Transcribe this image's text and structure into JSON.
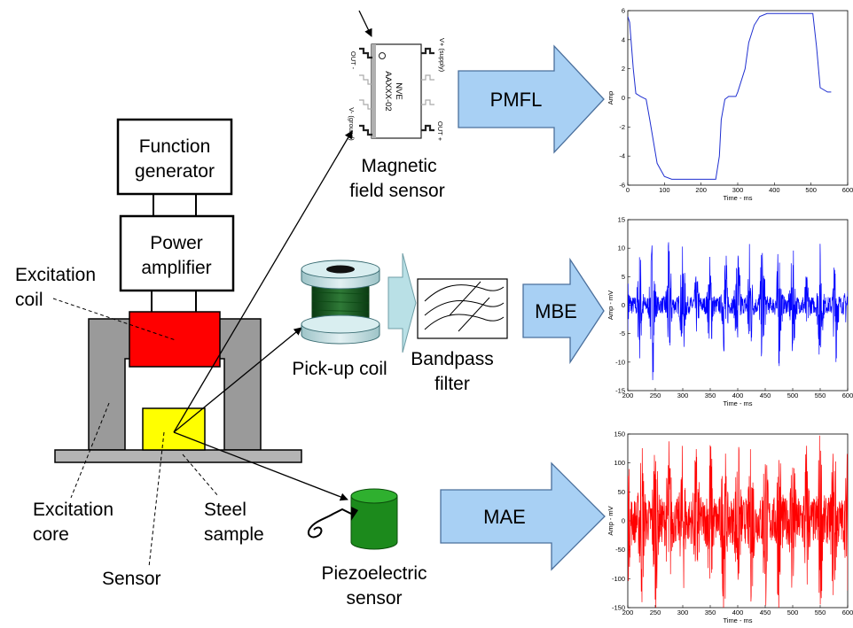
{
  "blocks": {
    "function_generator": [
      "Function",
      "generator"
    ],
    "power_amplifier": [
      "Power",
      "amplifier"
    ]
  },
  "labels": {
    "excitation_coil": [
      "Excitation",
      "coil"
    ],
    "excitation_core": [
      "Excitation",
      "core"
    ],
    "steel_sample": [
      "Steel",
      "sample"
    ],
    "sensor": "Sensor",
    "pickup_coil": "Pick-up coil",
    "bandpass_filter": [
      "Bandpass",
      "filter"
    ],
    "magnetic_field_sensor": [
      "Magnetic",
      "field sensor"
    ],
    "piezoelectric_sensor": [
      "Piezoelectric",
      "sensor"
    ]
  },
  "chip": {
    "brand": "NVE",
    "part": "AAXXX-02",
    "pin_out_minus": "OUT -",
    "pin_v_plus": "V+ (supply)",
    "pin_v_minus": "V- (ground)",
    "pin_out_plus": "OUT +"
  },
  "arrows": {
    "pmfl": "PMFL",
    "mbe": "MBE",
    "mae": "MAE"
  },
  "colors": {
    "arrow_fill": "#a8d0f4",
    "arrow_stroke": "#4a6f9c",
    "core_gray": "#9a9a9a",
    "coil_red": "#ff0000",
    "sample_yellow": "#ffff00",
    "piezo_green": "#1c8a1c",
    "pmfl_line": "#1f2fd0",
    "mbe_line": "#0000ff",
    "mae_line": "#ff0000"
  },
  "chart_data": [
    {
      "id": "pmfl",
      "type": "line",
      "title": "",
      "xlabel": "Time - ms",
      "ylabel": "Amp",
      "xlim": [
        0,
        600
      ],
      "ylim": [
        -6,
        6
      ],
      "x_ticks": [
        "0",
        "100",
        "200",
        "300",
        "400",
        "500",
        "600"
      ],
      "y_ticks": [
        "6",
        "4",
        "2",
        "0",
        "-2",
        "-4",
        "-6"
      ],
      "series": [
        {
          "x": [
            0,
            5,
            15,
            22,
            35,
            50,
            60,
            80,
            100,
            120,
            140,
            160,
            200,
            240,
            250,
            255,
            265,
            275,
            295,
            300,
            320,
            330,
            345,
            360,
            380,
            400,
            450,
            500,
            505,
            515,
            525,
            545,
            555
          ],
          "y": [
            5.6,
            5.2,
            2.0,
            0.3,
            0.1,
            -0.1,
            -1.5,
            -4.5,
            -5.4,
            -5.6,
            -5.6,
            -5.6,
            -5.6,
            -5.6,
            -4.0,
            -1.5,
            -0.1,
            0.1,
            0.1,
            0.4,
            2.0,
            3.8,
            5.0,
            5.6,
            5.8,
            5.8,
            5.8,
            5.8,
            5.8,
            3.5,
            0.7,
            0.4,
            0.4
          ]
        }
      ]
    },
    {
      "id": "mbe",
      "type": "line",
      "title": "",
      "xlabel": "Time - ms",
      "ylabel": "Amp - mV",
      "xlim": [
        200,
        600
      ],
      "ylim": [
        -15,
        15
      ],
      "x_ticks": [
        "200",
        "250",
        "300",
        "350",
        "400",
        "450",
        "500",
        "550",
        "600"
      ],
      "y_ticks": [
        "15",
        "10",
        "5",
        "0",
        "-5",
        "-10",
        "-15"
      ],
      "burst_times": [
        200,
        222,
        245,
        275,
        300,
        325,
        350,
        377,
        400,
        422,
        445,
        475,
        500,
        525,
        550,
        578,
        600
      ],
      "burst_peaks": [
        3,
        9,
        12,
        10,
        9,
        4,
        8,
        10,
        10,
        11,
        10,
        10,
        9,
        4,
        10,
        9,
        4
      ],
      "noise_level": 1.5
    },
    {
      "id": "mae",
      "type": "line",
      "title": "",
      "xlabel": "Time - ms",
      "ylabel": "Amp - mV",
      "xlim": [
        200,
        600
      ],
      "ylim": [
        -150,
        150
      ],
      "x_ticks": [
        "200",
        "250",
        "300",
        "350",
        "400",
        "450",
        "500",
        "550",
        "600"
      ],
      "y_ticks": [
        "150",
        "100",
        "50",
        "0",
        "-50",
        "-100",
        "-150"
      ],
      "burst_times": [
        200,
        225,
        250,
        275,
        300,
        325,
        350,
        375,
        400,
        425,
        450,
        475,
        500,
        525,
        550,
        575,
        600
      ],
      "burst_peaks": [
        70,
        120,
        130,
        115,
        100,
        105,
        120,
        130,
        115,
        110,
        125,
        130,
        120,
        110,
        130,
        125,
        90
      ],
      "noise_level": 40
    }
  ]
}
